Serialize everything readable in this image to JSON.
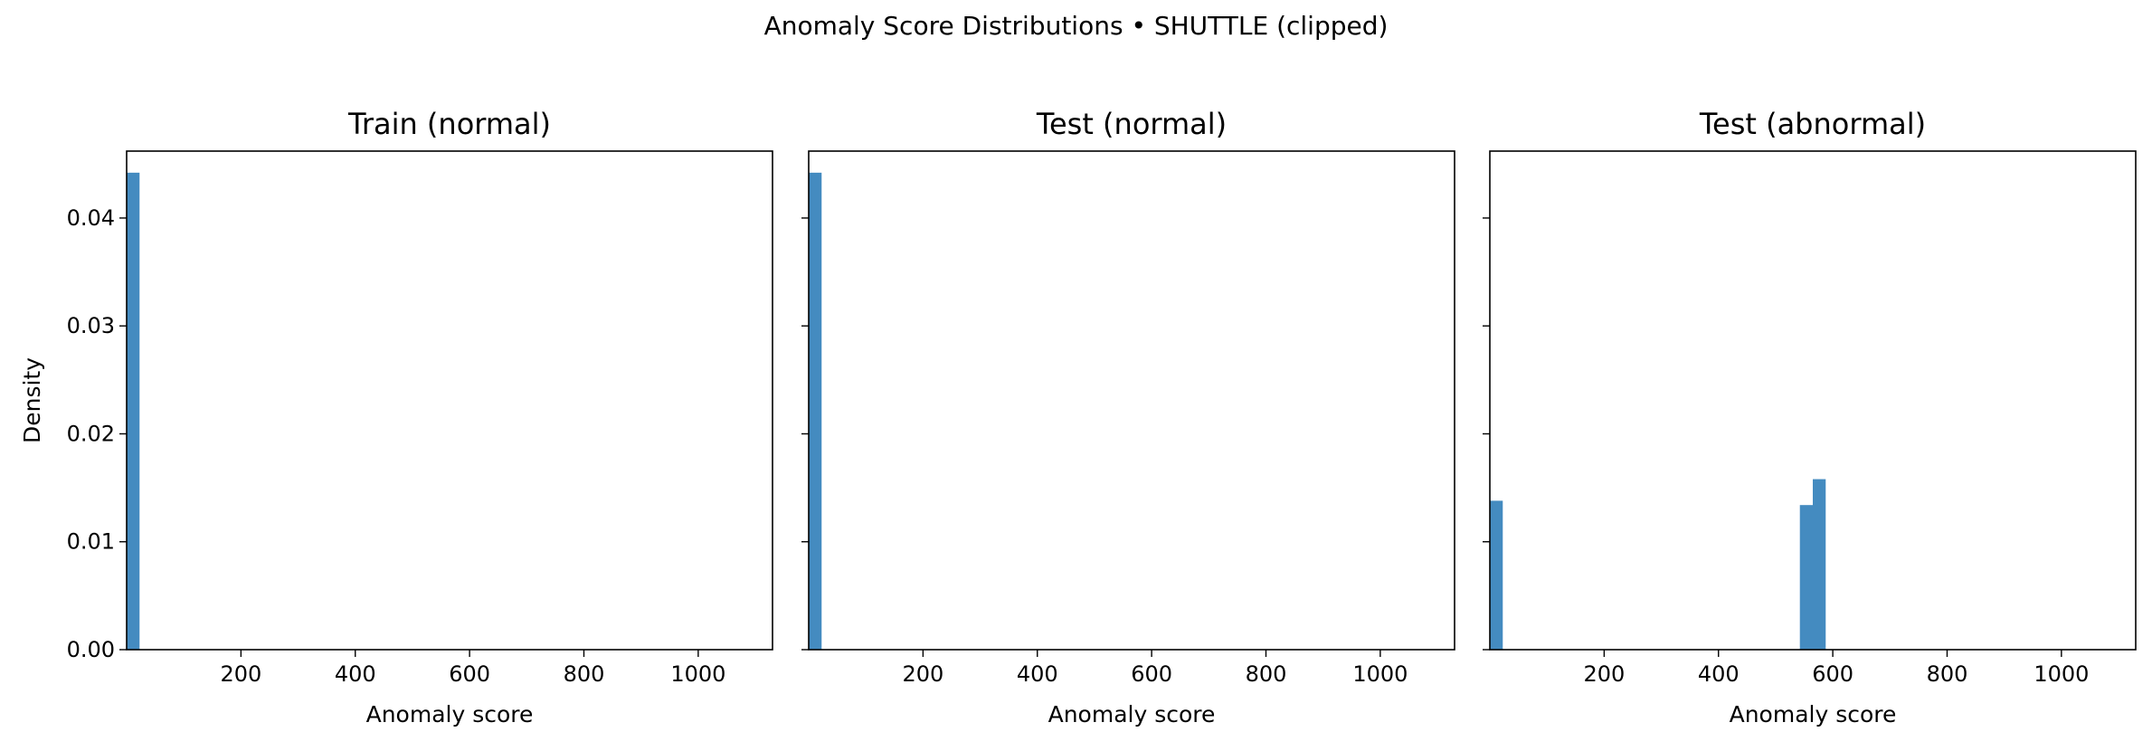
{
  "figure": {
    "suptitle": "Anomaly Score Distributions • SHUTTLE (clipped)"
  },
  "chart_data": [
    {
      "type": "bar",
      "title": "Train (normal)",
      "xlabel": "Anomaly score",
      "ylabel": "Density",
      "xlim": [
        0,
        1130
      ],
      "ylim": [
        0,
        0.0462
      ],
      "xticks": [
        200,
        400,
        600,
        800,
        1000
      ],
      "yticks": [
        0.0,
        0.01,
        0.02,
        0.03,
        0.04
      ],
      "ytick_labels": [
        "0.00",
        "0.01",
        "0.02",
        "0.03",
        "0.04"
      ],
      "bin_width": 22.6,
      "bins": [
        {
          "x0": 0,
          "x1": 22.6,
          "value": 0.0442
        }
      ],
      "color": "#448bc0",
      "grid": false
    },
    {
      "type": "bar",
      "title": "Test (normal)",
      "xlabel": "Anomaly score",
      "ylabel": "",
      "xlim": [
        0,
        1130
      ],
      "ylim": [
        0,
        0.0462
      ],
      "xticks": [
        200,
        400,
        600,
        800,
        1000
      ],
      "yticks": [
        0.0,
        0.01,
        0.02,
        0.03,
        0.04
      ],
      "ytick_labels": [],
      "bin_width": 22.6,
      "bins": [
        {
          "x0": 0,
          "x1": 22.6,
          "value": 0.0442
        }
      ],
      "color": "#448bc0",
      "grid": false
    },
    {
      "type": "bar",
      "title": "Test (abnormal)",
      "xlabel": "Anomaly score",
      "ylabel": "",
      "xlim": [
        0,
        1130
      ],
      "ylim": [
        0,
        0.0462
      ],
      "xticks": [
        200,
        400,
        600,
        800,
        1000
      ],
      "yticks": [
        0.0,
        0.01,
        0.02,
        0.03,
        0.04
      ],
      "ytick_labels": [],
      "bin_width": 22.6,
      "bins": [
        {
          "x0": 0,
          "x1": 22.6,
          "value": 0.0138
        },
        {
          "x0": 542.4,
          "x1": 565.0,
          "value": 0.0134
        },
        {
          "x0": 565.0,
          "x1": 587.6,
          "value": 0.0158
        }
      ],
      "color": "#448bc0",
      "grid": false
    }
  ]
}
